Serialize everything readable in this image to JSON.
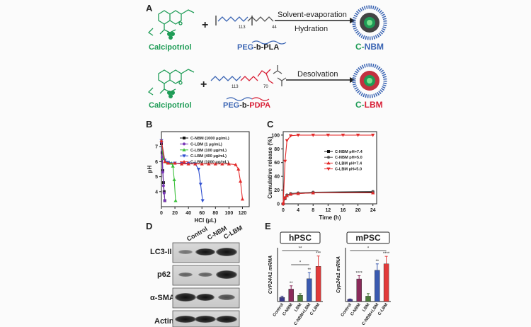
{
  "panels": {
    "A": {
      "label": "A",
      "row1": {
        "drug": "Calcipotriol",
        "plus": "+",
        "polymer": {
          "prefix": "PEG",
          "dash": "-b-",
          "suffix": "PLA",
          "subscript_left": "113",
          "subscript_right": "44"
        },
        "arrow_top": "Solvent-evaporation",
        "arrow_bottom": "Hydration",
        "product": {
          "prefix": "C-",
          "name": "NBM"
        }
      },
      "row2": {
        "drug": "Calcipotriol",
        "plus": "+",
        "polymer": {
          "prefix": "PEG",
          "dash": "-b-",
          "suffix": "PDPA",
          "subscript_left": "113",
          "subscript_right": "70"
        },
        "arrow_top": "Desolvation",
        "product": {
          "prefix": "C-",
          "name": "LBM"
        }
      }
    },
    "B": {
      "label": "B"
    },
    "C": {
      "label": "C"
    },
    "D": {
      "label": "D",
      "columns": [
        "Control",
        "C-NBM",
        "C-LBM"
      ],
      "rows": [
        "LC3-II",
        "p62",
        "α-SMA",
        "Actin"
      ]
    },
    "E": {
      "label": "E"
    }
  },
  "chart_data": [
    {
      "type": "line",
      "panel": "B",
      "xlabel": "HCl (μL)",
      "ylabel": "pH",
      "xlim": [
        0,
        130
      ],
      "ylim": [
        3,
        8
      ],
      "xticks": [
        0,
        20,
        40,
        60,
        80,
        100,
        120
      ],
      "yticks": [
        4,
        5,
        6,
        7
      ],
      "legend_position": "top-right",
      "series": [
        {
          "name": "C-NBM (1000 μg/mL)",
          "color": "#111111",
          "x": [
            0,
            1,
            2,
            3,
            4,
            5
          ],
          "y": [
            7.2,
            6.6,
            5.4,
            4.6,
            4.0,
            3.4
          ]
        },
        {
          "name": "C-LBM (1 μg/mL)",
          "color": "#7a38b8",
          "x": [
            0,
            1,
            2,
            3,
            4,
            5
          ],
          "y": [
            7.3,
            6.3,
            5.3,
            4.4,
            3.9,
            3.4
          ]
        },
        {
          "name": "C-LBM (100 μg/mL)",
          "color": "#3ac03a",
          "x": [
            0,
            3,
            6,
            9,
            12,
            15,
            17,
            19,
            21
          ],
          "y": [
            7.4,
            6.2,
            6.0,
            5.95,
            5.9,
            5.9,
            5.7,
            4.8,
            3.4
          ]
        },
        {
          "name": "C-LBM (400 μg/mL)",
          "color": "#2f4fd0",
          "x": [
            0,
            5,
            10,
            20,
            30,
            40,
            50,
            55,
            58,
            61
          ],
          "y": [
            7.4,
            6.1,
            5.95,
            5.9,
            5.9,
            5.9,
            5.85,
            5.5,
            4.5,
            3.4
          ]
        },
        {
          "name": "C-LBM (1000 μg/mL)",
          "color": "#e32a2a",
          "x": [
            0,
            5,
            10,
            20,
            30,
            40,
            50,
            60,
            70,
            80,
            90,
            100,
            110,
            114,
            117,
            120
          ],
          "y": [
            7.4,
            6.0,
            5.9,
            5.9,
            5.85,
            5.85,
            5.85,
            5.85,
            5.85,
            5.85,
            5.85,
            5.85,
            5.8,
            5.5,
            4.7,
            3.5
          ]
        }
      ]
    },
    {
      "type": "line",
      "panel": "C",
      "xlabel": "Time (h)",
      "ylabel": "Cumulative release (%)",
      "xlim": [
        0,
        25
      ],
      "ylim": [
        0,
        105
      ],
      "xticks": [
        0,
        4,
        8,
        12,
        16,
        20,
        24
      ],
      "yticks": [
        0,
        20,
        40,
        60,
        80,
        100
      ],
      "legend_position": "right",
      "series": [
        {
          "name": "C-NBM pH=7.4",
          "color": "#111111",
          "x": [
            0,
            0.5,
            1,
            2,
            4,
            8,
            24
          ],
          "y": [
            0,
            8,
            12,
            14,
            15,
            16,
            17
          ]
        },
        {
          "name": "C-NBM pH=5.0",
          "color": "#555555",
          "x": [
            0,
            0.5,
            1,
            2,
            4,
            8,
            24
          ],
          "y": [
            0,
            9,
            13,
            15,
            16,
            17,
            18
          ]
        },
        {
          "name": "C-LBM pH=7.4",
          "color": "#e32a2a",
          "x": [
            0,
            0.5,
            1,
            2,
            4,
            8,
            24
          ],
          "y": [
            0,
            9,
            12,
            14,
            15,
            16,
            16
          ]
        },
        {
          "name": "C-LBM pH=5.0",
          "color": "#e32a2a",
          "x": [
            0,
            0.5,
            1,
            2,
            4,
            8,
            12,
            16,
            20,
            24
          ],
          "y": [
            0,
            62,
            92,
            99,
            100,
            100,
            100,
            100,
            100,
            100
          ]
        }
      ]
    },
    {
      "type": "bar",
      "panel": "E",
      "title": "hPSC",
      "ylabel": "CYP24A1 mRNA",
      "categories": [
        "Control",
        "C-NBM",
        "LBM",
        "C-NBM+LBM",
        "C-LBM"
      ],
      "values": [
        1,
        3,
        1.5,
        5.5,
        8.5
      ],
      "errors": [
        0.3,
        0.8,
        0.4,
        1.5,
        2.5
      ],
      "colors": [
        "#3a3a8a",
        "#8a2a5a",
        "#4a7a3a",
        "#3a5ab0",
        "#e23a3a"
      ],
      "ylim": [
        0,
        13
      ],
      "significance": [
        "",
        "**",
        "",
        "**",
        "***"
      ],
      "brackets": [
        {
          "from": 0,
          "to": 4,
          "label": "**"
        },
        {
          "from": 1,
          "to": 3,
          "label": "*"
        }
      ]
    },
    {
      "type": "bar",
      "panel": "E",
      "title": "mPSC",
      "ylabel": "Cyp24a1 mRNA",
      "categories": [
        "Control",
        "C-NBM",
        "LBM",
        "C-NBM+LBM",
        "C-LBM"
      ],
      "values": [
        1,
        10.5,
        2.5,
        14.5,
        17.5
      ],
      "errors": [
        0.2,
        1.5,
        1.2,
        3,
        3.5
      ],
      "colors": [
        "#3a3a8a",
        "#8a2a5a",
        "#4a7a3a",
        "#3a5ab0",
        "#e23a3a"
      ],
      "ylim": [
        0,
        25
      ],
      "significance": [
        "",
        "****",
        "",
        "**",
        "****"
      ],
      "brackets": [
        {
          "from": 0,
          "to": 4,
          "label": "*"
        }
      ]
    }
  ]
}
